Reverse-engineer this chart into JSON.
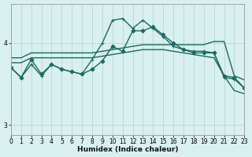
{
  "xlabel": "Humidex (Indice chaleur)",
  "bg_color": "#d8f0ee",
  "grid_color": "#b8d8d4",
  "line_color": "#1a6b60",
  "xlim": [
    0,
    23
  ],
  "ylim": [
    2.88,
    4.48
  ],
  "yticks": [
    3,
    4
  ],
  "xticks": [
    0,
    1,
    2,
    3,
    4,
    5,
    6,
    7,
    8,
    9,
    10,
    11,
    12,
    13,
    14,
    15,
    16,
    17,
    18,
    19,
    20,
    21,
    22,
    23
  ],
  "lines": [
    {
      "x": [
        0,
        1,
        2,
        3,
        4,
        5,
        6,
        7,
        8,
        9,
        10,
        11,
        12,
        13,
        14,
        15,
        16,
        17,
        18,
        19,
        20,
        21,
        22,
        23
      ],
      "y": [
        3.82,
        3.82,
        3.88,
        3.88,
        3.88,
        3.88,
        3.88,
        3.88,
        3.88,
        3.9,
        3.92,
        3.94,
        3.96,
        3.98,
        3.98,
        3.98,
        3.98,
        3.98,
        3.98,
        3.98,
        4.02,
        4.02,
        3.6,
        3.55
      ],
      "marker": null,
      "lw": 1.0
    },
    {
      "x": [
        0,
        1,
        2,
        3,
        4,
        5,
        6,
        7,
        8,
        9,
        10,
        11,
        12,
        13,
        14,
        15,
        16,
        17,
        18,
        19,
        20,
        21,
        22,
        23
      ],
      "y": [
        3.76,
        3.76,
        3.82,
        3.82,
        3.82,
        3.82,
        3.82,
        3.82,
        3.82,
        3.84,
        3.86,
        3.88,
        3.9,
        3.92,
        3.92,
        3.92,
        3.9,
        3.88,
        3.86,
        3.84,
        3.82,
        3.6,
        3.42,
        3.38
      ],
      "marker": null,
      "lw": 1.0
    },
    {
      "x": [
        0,
        1,
        2,
        3,
        4,
        5,
        6,
        7,
        8,
        9,
        10,
        11,
        12,
        13,
        14,
        15,
        16,
        17,
        18,
        19,
        20,
        21,
        22,
        23
      ],
      "y": [
        3.7,
        3.58,
        3.74,
        3.6,
        3.74,
        3.68,
        3.65,
        3.62,
        3.8,
        4.0,
        4.28,
        4.3,
        4.18,
        4.28,
        4.18,
        4.08,
        3.96,
        3.92,
        3.9,
        3.9,
        3.88,
        3.58,
        3.56,
        3.45
      ],
      "marker": "+",
      "lw": 1.0
    },
    {
      "x": [
        0,
        1,
        2,
        3,
        4,
        5,
        6,
        7,
        8,
        9,
        10,
        11,
        12,
        13,
        14,
        15,
        16,
        17,
        18,
        19,
        20,
        21,
        22,
        23
      ],
      "y": [
        3.7,
        3.58,
        3.8,
        3.62,
        3.74,
        3.68,
        3.65,
        3.62,
        3.68,
        3.78,
        3.96,
        3.9,
        4.15,
        4.15,
        4.2,
        4.1,
        4.0,
        3.92,
        3.88,
        3.88,
        3.88,
        3.6,
        3.58,
        3.45
      ],
      "marker": "D",
      "lw": 1.0
    }
  ]
}
